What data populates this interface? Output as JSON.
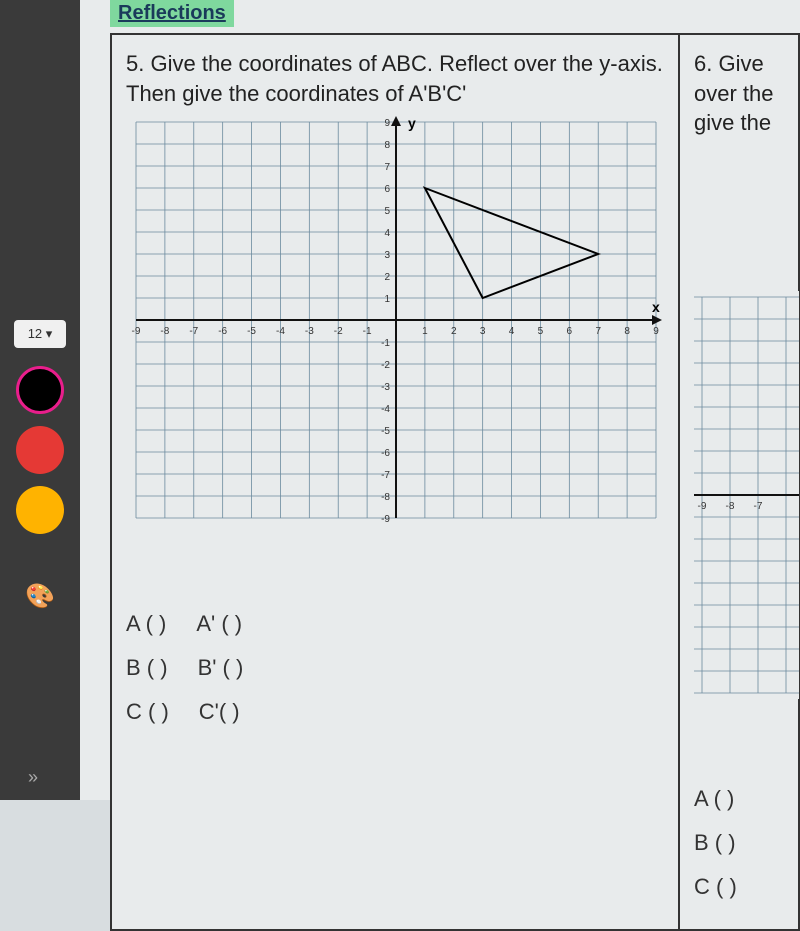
{
  "sidebar": {
    "zoom": "12 ▾",
    "swatches": [
      {
        "name": "black",
        "hex": "#000000",
        "ring": "#e91e8c"
      },
      {
        "name": "red",
        "hex": "#e53935"
      },
      {
        "name": "orange",
        "hex": "#ffb300"
      }
    ],
    "palette_icon": "🎨",
    "chevron": "»"
  },
  "header": "Reflections",
  "problem5": {
    "number": "5.",
    "prompt": "Give the coordinates of ABC.  Reflect over the y-axis. Then give the coordinates of A'B'C'",
    "graph": {
      "xmin": -9,
      "xmax": 9,
      "ymin": -9,
      "ymax": 9,
      "xlabel": "x",
      "ylabel": "y",
      "tick_step": 1,
      "grid_color": "#6b8a9e",
      "axis_color": "#111111",
      "background": "#e8ebec",
      "triangle": {
        "stroke": "#000000",
        "stroke_width": 2,
        "fill": "none",
        "points": [
          {
            "x": 1,
            "y": 6
          },
          {
            "x": 7,
            "y": 3
          },
          {
            "x": 3,
            "y": 1
          }
        ]
      }
    },
    "answers": {
      "rows": [
        {
          "orig": "A (          )",
          "prime": "A' (          )"
        },
        {
          "orig": "B (          )",
          "prime": "B' (          )"
        },
        {
          "orig": "C (          )",
          "prime": "C'(          )"
        }
      ]
    }
  },
  "problem6": {
    "number": "6.",
    "prompt_lines": [
      "Give",
      "over the",
      "give the"
    ],
    "partial_graph": {
      "xticks": [
        -9,
        -8,
        -7
      ],
      "grid_color": "#6b8a9e"
    },
    "answers": [
      "A (        )",
      "B (        )",
      "C (        )"
    ]
  }
}
